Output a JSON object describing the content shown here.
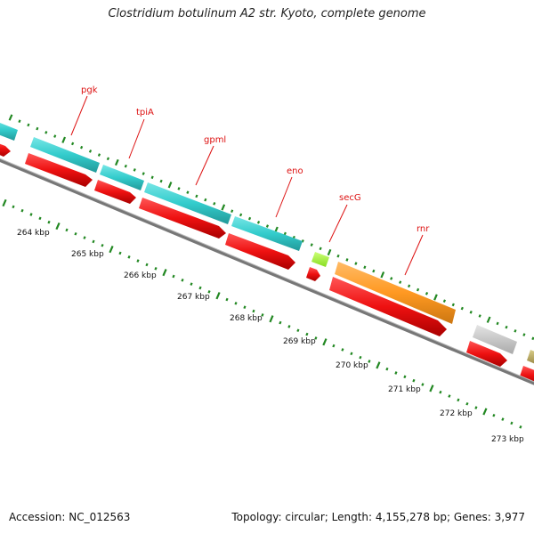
{
  "title": "Clostridium botulinum A2 str. Kyoto, complete genome",
  "footer": {
    "accession": "Accession: NC_012563",
    "summary": "Topology: circular; Length: 4,155,278 bp; Genes: 3,977"
  },
  "colors": {
    "background": "#ffffff",
    "backbone": "#888888",
    "gene_red": "#ee1111",
    "gene_cyan": "#33cccc",
    "gene_orange": "#ff9922",
    "gene_lime": "#aaff33",
    "gene_gray": "#cccccc",
    "gene_olive": "#bbaa66",
    "tick_green": "#228822",
    "label_red": "#dd1111"
  },
  "gene_labels": [
    "pgk",
    "tpiA",
    "gpml",
    "eno",
    "secG",
    "rnr"
  ],
  "scale_labels": [
    "264 kbp",
    "265 kbp",
    "266 kbp",
    "267 kbp",
    "268 kbp",
    "269 kbp",
    "270 kbp",
    "271 kbp",
    "272 kbp",
    "273 kbp"
  ]
}
